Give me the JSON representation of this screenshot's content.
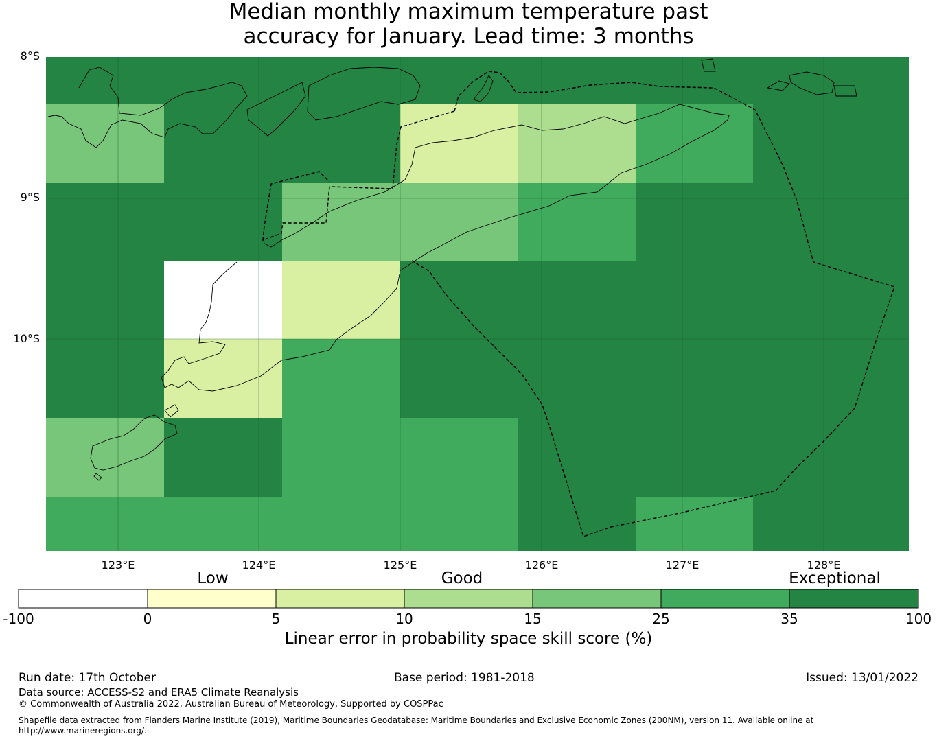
{
  "title": {
    "line1": "Median monthly maximum temperature past",
    "line2": "accuracy for January. Lead time: 3 months"
  },
  "map": {
    "lat_labels": [
      "8°S",
      "9°S",
      "10°S"
    ],
    "lon_labels": [
      "123°E",
      "124°E",
      "125°E",
      "126°E",
      "127°E",
      "128°E"
    ],
    "background_color": "#238443",
    "grid": "on"
  },
  "colorbar": {
    "categories": [
      "Low",
      "Good",
      "Exceptional"
    ],
    "ticks": [
      "-100",
      "0",
      "5",
      "10",
      "15",
      "25",
      "35",
      "100"
    ],
    "colors": [
      "#ffffff",
      "#ffffcc",
      "#d9f0a3",
      "#addd8e",
      "#78c679",
      "#41ab5d",
      "#238443"
    ],
    "label": "Linear error in probability space skill score (%)"
  },
  "footer": {
    "run_date": "Run date: 17th October",
    "base_period": "Base period: 1981-2018",
    "issued": "Issued: 13/01/2022",
    "data_source": "Data source: ACCESS-S2 and ERA5 Climate Reanalysis",
    "copyright": "© Commonwealth of Australia 2022, Australian Bureau of Meteorology, Supported by COSPPac",
    "shapefile_line1": "Shapefile data extracted from Flanders Marine Institute (2019), Maritime Boundaries Geodatabase: Maritime Boundaries and Exclusive Economic Zones (200NM), version 11. Available online at",
    "shapefile_line2": "http://www.marineregions.org/."
  }
}
